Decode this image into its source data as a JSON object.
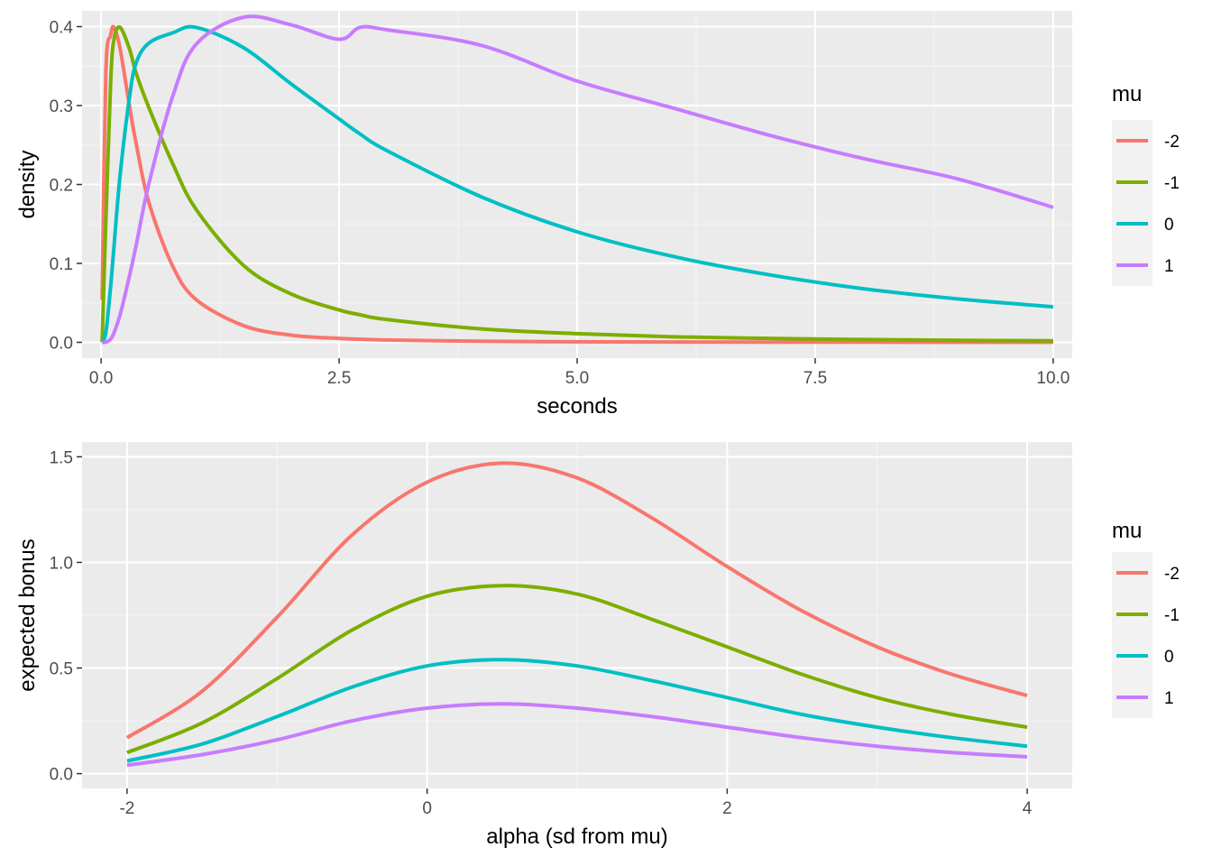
{
  "colors": {
    "panel_bg": "#EBEBEB",
    "grid_major": "#FFFFFF",
    "grid_minor": "#F5F5F5",
    "series": [
      "#F8766D",
      "#7CAE00",
      "#00BFC4",
      "#C77CFF"
    ]
  },
  "chart_data": [
    {
      "type": "line",
      "title": "",
      "xlabel": "seconds",
      "ylabel": "density",
      "xlim": [
        -0.2,
        10.2
      ],
      "ylim": [
        -0.02,
        0.42
      ],
      "x_ticks": [
        0,
        2.5,
        5,
        7.5,
        10
      ],
      "x_tick_labels": [
        "0.0",
        "2.5",
        "5.0",
        "7.5",
        "10.0"
      ],
      "y_ticks": [
        0,
        0.1,
        0.2,
        0.3,
        0.4
      ],
      "y_tick_labels": [
        "0.0",
        "0.1",
        "0.2",
        "0.3",
        "0.4"
      ],
      "grid": true,
      "legend": {
        "title": "mu",
        "placement": "right"
      },
      "x": [
        0.01,
        0.05,
        0.1,
        0.135,
        0.2,
        0.3,
        0.368,
        0.5,
        0.75,
        1,
        1.5,
        2,
        2.5,
        2.72,
        3,
        4,
        5,
        6,
        7,
        8,
        9,
        10
      ],
      "series": [
        {
          "name": "-2",
          "values": [
            0.054,
            0.343,
            0.389,
            0.399,
            0.372,
            0.298,
            0.252,
            0.178,
            0.097,
            0.054,
            0.021,
            0.009,
            0.005,
            0.004,
            0.003,
            0.0014,
            0.0007,
            0.0004,
            0.0003,
            0.0002,
            0.0001,
            0.0001
          ]
        },
        {
          "name": "-1",
          "values": [
            0.0004,
            0.153,
            0.329,
            0.384,
            0.399,
            0.371,
            0.341,
            0.298,
            0.227,
            0.168,
            0.097,
            0.061,
            0.041,
            0.035,
            0.029,
            0.017,
            0.011,
            0.007,
            0.005,
            0.0036,
            0.0026,
            0.0019
          ]
        },
        {
          "name": "0",
          "values": [
            1e-05,
            0.0125,
            0.071,
            0.121,
            0.212,
            0.312,
            0.354,
            0.379,
            0.392,
            0.399,
            0.373,
            0.327,
            0.283,
            0.264,
            0.243,
            0.184,
            0.14,
            0.109,
            0.086,
            0.068,
            0.055,
            0.045
          ]
        },
        {
          "name": "1",
          "values": [
            0.0,
            0.0003,
            0.004,
            0.012,
            0.035,
            0.085,
            0.123,
            0.2,
            0.311,
            0.378,
            0.412,
            0.402,
            0.384,
            0.399,
            0.396,
            0.376,
            0.331,
            0.297,
            0.263,
            0.233,
            0.207,
            0.171
          ]
        }
      ]
    },
    {
      "type": "line",
      "title": "",
      "xlabel": "alpha (sd from mu)",
      "ylabel": "expected bonus",
      "xlim": [
        -2.3,
        4.3
      ],
      "ylim": [
        -0.07,
        1.57
      ],
      "x_ticks": [
        -2,
        0,
        2,
        4
      ],
      "x_tick_labels": [
        "-2",
        "0",
        "2",
        "4"
      ],
      "y_ticks": [
        0,
        0.5,
        1.0,
        1.5
      ],
      "y_tick_labels": [
        "0.0",
        "0.5",
        "1.0",
        "1.5"
      ],
      "grid": true,
      "legend": {
        "title": "mu",
        "placement": "right"
      },
      "x": [
        -2,
        -1.5,
        -1,
        -0.5,
        0,
        0.5,
        1,
        1.5,
        2,
        2.5,
        3,
        3.5,
        4
      ],
      "series": [
        {
          "name": "-2",
          "values": [
            0.17,
            0.39,
            0.74,
            1.13,
            1.38,
            1.47,
            1.4,
            1.21,
            0.98,
            0.77,
            0.6,
            0.47,
            0.37
          ]
        },
        {
          "name": "-1",
          "values": [
            0.1,
            0.24,
            0.45,
            0.68,
            0.84,
            0.89,
            0.85,
            0.73,
            0.6,
            0.47,
            0.36,
            0.28,
            0.22
          ]
        },
        {
          "name": "0",
          "values": [
            0.06,
            0.14,
            0.27,
            0.41,
            0.51,
            0.54,
            0.51,
            0.44,
            0.36,
            0.28,
            0.22,
            0.17,
            0.13
          ]
        },
        {
          "name": "1",
          "values": [
            0.04,
            0.09,
            0.16,
            0.25,
            0.31,
            0.33,
            0.31,
            0.27,
            0.22,
            0.17,
            0.13,
            0.1,
            0.08
          ]
        }
      ]
    }
  ]
}
